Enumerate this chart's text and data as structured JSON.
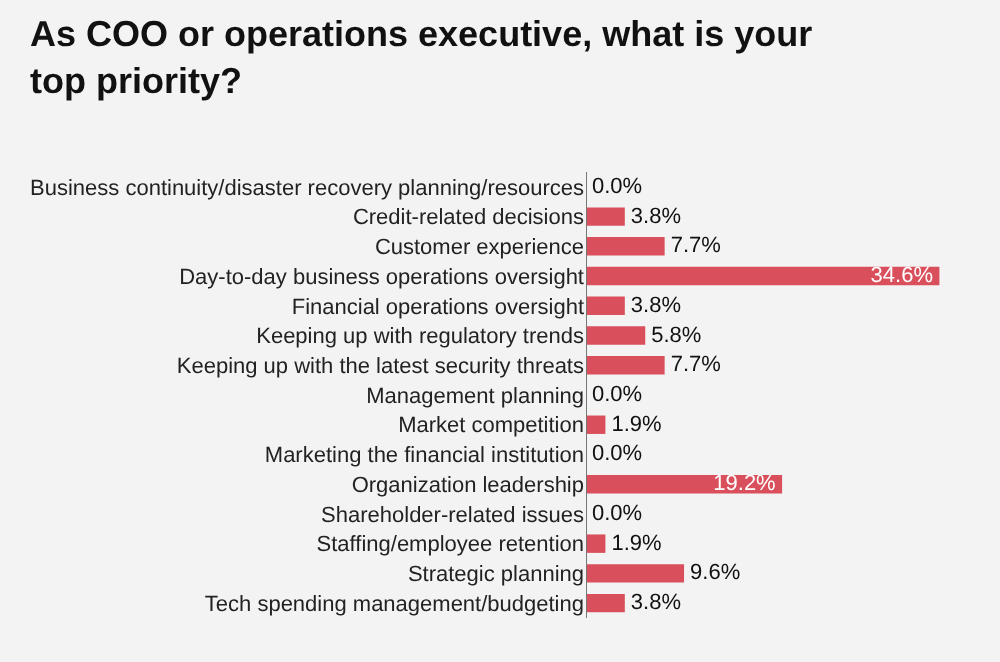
{
  "chart_data": {
    "type": "bar",
    "orientation": "horizontal",
    "title": "As COO or operations executive, what is your top priority?",
    "categories": [
      "Business continuity/disaster recovery planning/resources",
      "Credit-related decisions",
      "Customer experience",
      "Day-to-day business operations oversight",
      "Financial operations oversight",
      "Keeping up with regulatory trends",
      "Keeping up with the latest security threats",
      "Management planning",
      "Market competition",
      "Marketing the financial institution",
      "Organization leadership",
      "Shareholder-related issues",
      "Staffing/employee retention",
      "Strategic planning",
      "Tech spending management/budgeting"
    ],
    "values": [
      0.0,
      3.8,
      7.7,
      34.6,
      3.8,
      5.8,
      7.7,
      0.0,
      1.9,
      0.0,
      19.2,
      0.0,
      1.9,
      9.6,
      3.8
    ],
    "value_labels": [
      "0.0%",
      "3.8%",
      "7.7%",
      "34.6%",
      "3.8%",
      "5.8%",
      "7.7%",
      "0.0%",
      "1.9%",
      "0.0%",
      "19.2%",
      "0.0%",
      "1.9%",
      "9.6%",
      "3.8%"
    ],
    "color": "#d9505c"
  }
}
